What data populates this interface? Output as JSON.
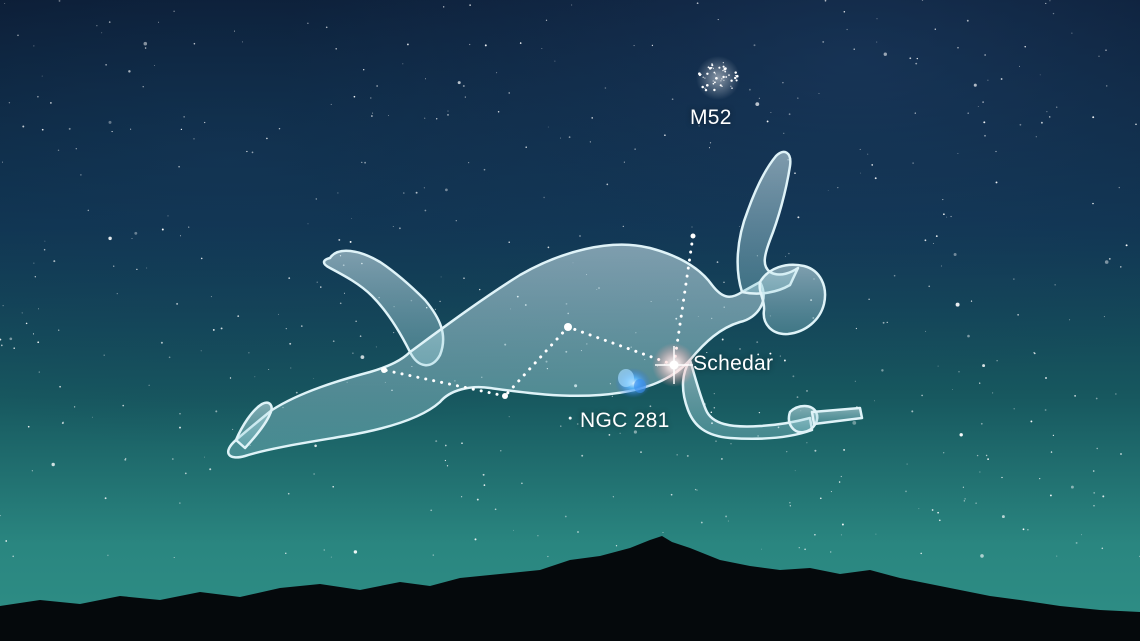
{
  "scene": {
    "subject": "Cassiopeia constellation",
    "colors": {
      "sky_top": "#0c1d35",
      "sky_mid": "#134b5c",
      "sky_horizon": "#2e8a84",
      "mountains": "#05090c",
      "figure_stroke": "#cfe9f0",
      "figure_fill": "#a9d9e4",
      "star": "#ffffff",
      "nebula": "#5ab7ff"
    }
  },
  "labels": {
    "m52": "M52",
    "schedar": "Schedar",
    "ngc281": "NGC 281"
  }
}
